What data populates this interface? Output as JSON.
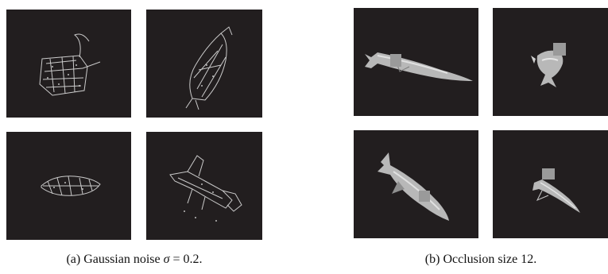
{
  "figure": {
    "captions": {
      "a": {
        "prefix": "(a)  Gaussian noise ",
        "symbol": "σ",
        "suffix": " = 0.2."
      },
      "b": {
        "text": "(b)  Occlusion size 12."
      }
    },
    "colors": {
      "background": "#221e1f",
      "fish_noise": "#e8e8e8",
      "fish_body": "#b8b8b8",
      "occluder": "#9a9a9a"
    },
    "panels": [
      {
        "group": "a",
        "content": "noisy-fish"
      },
      {
        "group": "a",
        "content": "noisy-fish"
      },
      {
        "group": "a",
        "content": "noisy-fish"
      },
      {
        "group": "a",
        "content": "noisy-fish"
      },
      {
        "group": "b",
        "content": "occluded-fish"
      },
      {
        "group": "b",
        "content": "occluded-fish"
      },
      {
        "group": "b",
        "content": "occluded-fish"
      },
      {
        "group": "b",
        "content": "occluded-fish"
      }
    ]
  }
}
